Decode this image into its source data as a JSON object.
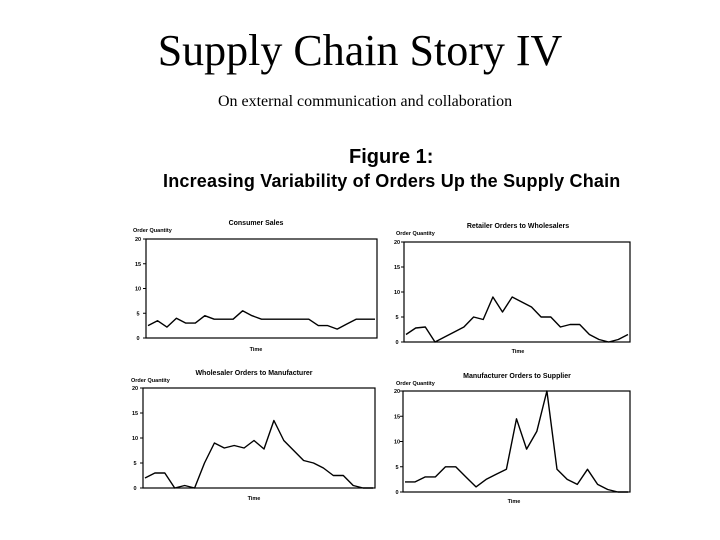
{
  "slide": {
    "title": "Supply Chain Story IV",
    "subtitle": "On external communication and collaboration"
  },
  "figure": {
    "label": "Figure 1:",
    "caption": "Increasing Variability of Orders Up the Supply Chain"
  },
  "chart_data": [
    {
      "type": "line",
      "title": "Consumer Sales",
      "ylabel": "Order Quantity",
      "xlabel": "Time",
      "ylim": [
        0,
        20
      ],
      "yticks": [
        "20",
        "15",
        "10",
        "5",
        "0"
      ],
      "values": [
        2.5,
        3.5,
        2.2,
        4,
        3,
        3,
        4.5,
        3.8,
        3.8,
        3.8,
        5.5,
        4.5,
        3.8,
        3.8,
        3.8,
        3.8,
        3.8,
        3.8,
        2.5,
        2.5,
        1.8,
        2.8,
        3.8,
        3.8,
        3.8
      ],
      "grid": false
    },
    {
      "type": "line",
      "title": "Retailer Orders to Wholesalers",
      "ylabel": "Order Quantity",
      "xlabel": "Time",
      "ylim": [
        0,
        20
      ],
      "yticks": [
        "20",
        "15",
        "10",
        "5",
        "0"
      ],
      "values": [
        1.5,
        2.8,
        3,
        0,
        1,
        2,
        3,
        5,
        4.5,
        9,
        6,
        9,
        8,
        7,
        5,
        5,
        3,
        3.5,
        3.5,
        1.5,
        0.5,
        0,
        0.5,
        1.5
      ],
      "grid": false
    },
    {
      "type": "line",
      "title": "Wholesaler Orders to Manufacturer",
      "ylabel": "Order Quantity",
      "xlabel": "Time",
      "ylim": [
        0,
        20
      ],
      "yticks": [
        "20",
        "15",
        "10",
        "5",
        "0"
      ],
      "values": [
        2,
        3,
        3,
        0,
        0.5,
        0,
        5,
        9,
        8,
        8.5,
        8,
        9.5,
        7.8,
        13.5,
        9.5,
        7.5,
        5.5,
        5,
        4,
        2.5,
        2.5,
        0.5,
        0,
        0
      ],
      "grid": false
    },
    {
      "type": "line",
      "title": "Manufacturer Orders to Supplier",
      "ylabel": "Order Quantity",
      "xlabel": "Time",
      "ylim": [
        0,
        20
      ],
      "yticks": [
        "20",
        "15",
        "10",
        "5",
        "0"
      ],
      "values": [
        2,
        2,
        3,
        3,
        5,
        5,
        3,
        1,
        2.5,
        3.5,
        4.5,
        14.5,
        8.5,
        12,
        20,
        4.5,
        2.5,
        1.5,
        4.5,
        1.5,
        0.5,
        0,
        0
      ],
      "grid": false
    }
  ]
}
